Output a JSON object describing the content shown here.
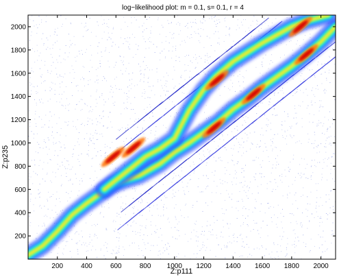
{
  "chart_data": {
    "type": "heatmap",
    "title": "log−likelihood plot: m = 0.1, s= 0.1, r = 4",
    "xlabel": "Z:p111",
    "ylabel": "Z:p235",
    "xlim": [
      0,
      2100
    ],
    "ylim": [
      0,
      2100
    ],
    "xticks": [
      200,
      400,
      600,
      800,
      1000,
      1200,
      1400,
      1600,
      1800,
      2000
    ],
    "yticks": [
      200,
      400,
      600,
      800,
      1000,
      1200,
      1400,
      1600,
      1800,
      2000
    ],
    "colormap": "jet",
    "grid": false,
    "ridges": [
      {
        "path": [
          [
            0,
            35
          ],
          [
            100,
            115
          ],
          [
            200,
            240
          ],
          [
            300,
            380
          ],
          [
            400,
            480
          ],
          [
            500,
            570
          ],
          [
            580,
            640
          ],
          [
            660,
            680
          ],
          [
            760,
            720
          ],
          [
            900,
            820
          ],
          [
            1000,
            920
          ],
          [
            1100,
            1000
          ],
          [
            1200,
            1090
          ],
          [
            1300,
            1180
          ],
          [
            1400,
            1290
          ],
          [
            1500,
            1380
          ],
          [
            1600,
            1480
          ],
          [
            1700,
            1570
          ],
          [
            1800,
            1660
          ],
          [
            1900,
            1760
          ],
          [
            2000,
            1870
          ],
          [
            2100,
            2000
          ]
        ],
        "peak_regions": [
          [
            1270,
            1130
          ],
          [
            1540,
            1420
          ],
          [
            1900,
            1760
          ]
        ]
      },
      {
        "path": [
          [
            520,
            600
          ],
          [
            580,
            660
          ],
          [
            700,
            780
          ],
          [
            800,
            880
          ],
          [
            900,
            950
          ],
          [
            1000,
            1040
          ],
          [
            1100,
            1280
          ],
          [
            1200,
            1460
          ],
          [
            1280,
            1570
          ],
          [
            1400,
            1700
          ],
          [
            1500,
            1780
          ],
          [
            1600,
            1860
          ],
          [
            1700,
            1930
          ],
          [
            1800,
            2000
          ],
          [
            1900,
            2050
          ],
          [
            2050,
            2100
          ]
        ],
        "peak_regions": [
          [
            580,
            880
          ],
          [
            720,
            960
          ],
          [
            1290,
            1540
          ],
          [
            1860,
            2000
          ]
        ]
      }
    ],
    "streaks_x_range": [
      600,
      2100
    ]
  }
}
